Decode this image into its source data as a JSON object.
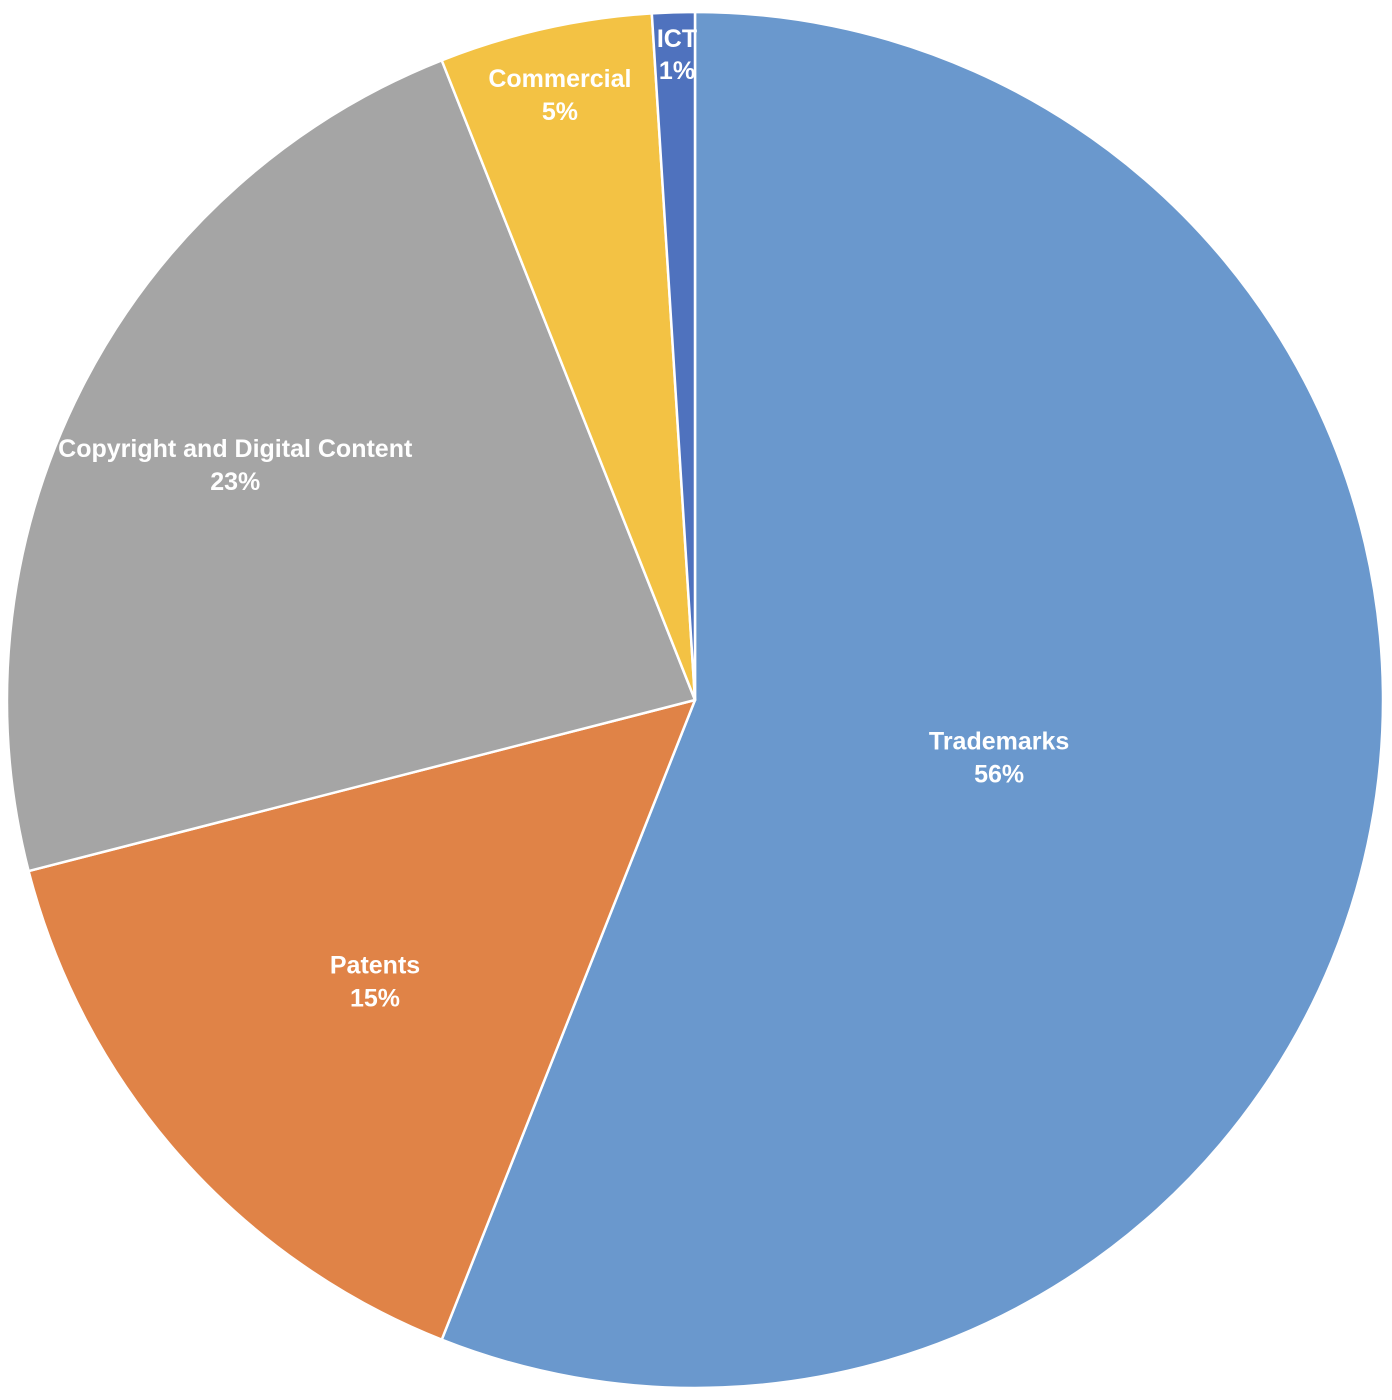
{
  "chart_data": {
    "type": "pie",
    "title": "",
    "start_direction": "top",
    "direction": "clockwise",
    "slices": [
      {
        "category": "Trademarks",
        "value": 56,
        "label": "56%",
        "color": "#6A98CD"
      },
      {
        "category": "Patents",
        "value": 15,
        "label": "15%",
        "color": "#E08347"
      },
      {
        "category": "Copyright and Digital Content",
        "value": 23,
        "label": "23%",
        "color": "#A5A5A5"
      },
      {
        "category": "Commercial",
        "value": 5,
        "label": "5%",
        "color": "#F3C244"
      },
      {
        "category": "ICT",
        "value": 1,
        "label": "1%",
        "color": "#4F72BE"
      }
    ],
    "legend": "none",
    "data_labels": "category and percent, inside slices"
  }
}
